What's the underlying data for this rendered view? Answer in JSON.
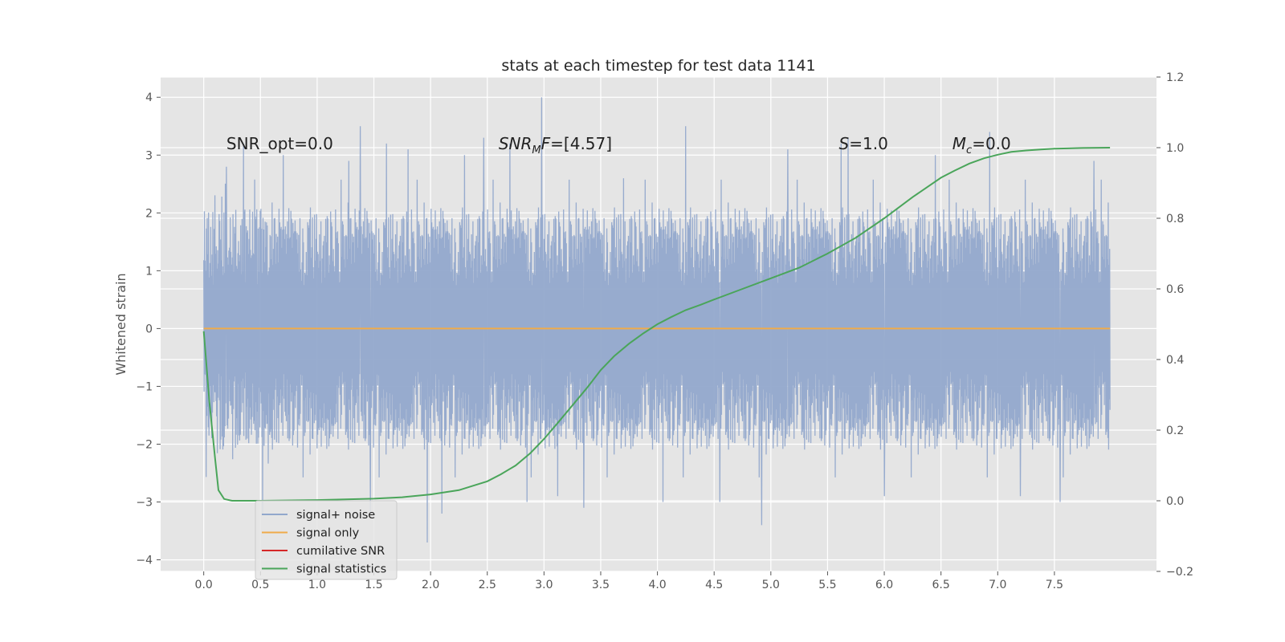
{
  "chart_data": {
    "type": "line",
    "title": "stats at each timestep for test data 1141",
    "ylabel": "Whitened strain",
    "xlabel": "",
    "xlim": [
      -0.38,
      8.4
    ],
    "ylim": [
      -4.2,
      4.35
    ],
    "y2lim": [
      -0.2,
      1.2
    ],
    "xticks": [
      "0.0",
      "0.5",
      "1.0",
      "1.5",
      "2.0",
      "2.5",
      "3.0",
      "3.5",
      "4.0",
      "4.5",
      "5.0",
      "5.5",
      "6.0",
      "6.5",
      "7.0",
      "7.5"
    ],
    "yticks": [
      "4",
      "3",
      "2",
      "1",
      "0",
      "−1",
      "−2",
      "−3",
      "−4"
    ],
    "y2ticks": [
      "1.2",
      "1.0",
      "0.8",
      "0.6",
      "0.4",
      "0.2",
      "0.0",
      "−0.2"
    ],
    "grid": true,
    "legend_position": "lower-left",
    "background": "#e5e5e5",
    "annotations": [
      {
        "id": "snr-opt",
        "text": "SNR_opt=0.0",
        "x": 0.2,
        "y": 3.2
      },
      {
        "id": "snr-mf",
        "text": "SNR_MF=[4.57]",
        "x": 2.6,
        "y": 3.2
      },
      {
        "id": "s-stat",
        "text": "S=1.0",
        "x": 5.6,
        "y": 3.2
      },
      {
        "id": "mc",
        "text": "M_c=0.0",
        "x": 6.6,
        "y": 3.2
      }
    ],
    "series": [
      {
        "name": "signal+ noise",
        "color": "#92a8cc",
        "axis": "left",
        "x_range": [
          0.0,
          7.99
        ],
        "envelope": {
          "typical_peak": 2.1,
          "max": 4.0,
          "min": -3.7,
          "core": 0.75
        },
        "spikes": [
          {
            "x": 0.2,
            "y": 2.8
          },
          {
            "x": 0.35,
            "y": 3.2
          },
          {
            "x": 0.52,
            "y": -3.2
          },
          {
            "x": 0.7,
            "y": 3.0
          },
          {
            "x": 1.28,
            "y": 2.9
          },
          {
            "x": 1.38,
            "y": 3.5
          },
          {
            "x": 1.47,
            "y": -3.2
          },
          {
            "x": 1.61,
            "y": 3.2
          },
          {
            "x": 1.8,
            "y": 3.1
          },
          {
            "x": 1.97,
            "y": -3.7
          },
          {
            "x": 2.1,
            "y": -3.2
          },
          {
            "x": 2.3,
            "y": 3.0
          },
          {
            "x": 2.47,
            "y": 3.3
          },
          {
            "x": 2.7,
            "y": 3.2
          },
          {
            "x": 2.85,
            "y": -3.0
          },
          {
            "x": 2.98,
            "y": 4.0
          },
          {
            "x": 3.12,
            "y": -2.9
          },
          {
            "x": 3.35,
            "y": -3.1
          },
          {
            "x": 3.7,
            "y": 2.6
          },
          {
            "x": 4.05,
            "y": -3.0
          },
          {
            "x": 4.25,
            "y": 3.5
          },
          {
            "x": 4.55,
            "y": -3.0
          },
          {
            "x": 4.92,
            "y": -3.4
          },
          {
            "x": 5.15,
            "y": 3.1
          },
          {
            "x": 5.62,
            "y": 3.2
          },
          {
            "x": 5.68,
            "y": 3.3
          },
          {
            "x": 6.0,
            "y": -2.9
          },
          {
            "x": 6.45,
            "y": 3.0
          },
          {
            "x": 6.93,
            "y": 3.4
          },
          {
            "x": 7.2,
            "y": -2.9
          },
          {
            "x": 7.55,
            "y": -3.0
          },
          {
            "x": 7.85,
            "y": 2.9
          }
        ]
      },
      {
        "name": "signal only",
        "color": "#f0ab4a",
        "axis": "left",
        "x": [
          0.0,
          7.99
        ],
        "y": [
          0.0,
          0.0
        ]
      },
      {
        "name": "cumilative SNR",
        "color": "#d62728",
        "axis": "right",
        "x": [],
        "y": []
      },
      {
        "name": "signal statistics",
        "color": "#4aa55a",
        "axis": "right",
        "x": [
          0.0,
          0.05,
          0.1,
          0.13,
          0.18,
          0.25,
          0.5,
          1.0,
          1.5,
          1.75,
          2.0,
          2.25,
          2.4,
          2.5,
          2.62,
          2.75,
          2.88,
          3.0,
          3.12,
          3.25,
          3.38,
          3.5,
          3.62,
          3.75,
          3.88,
          4.0,
          4.12,
          4.25,
          4.38,
          4.5,
          4.75,
          5.0,
          5.25,
          5.5,
          5.75,
          6.0,
          6.25,
          6.5,
          6.62,
          6.75,
          6.88,
          7.0,
          7.12,
          7.25,
          7.38,
          7.5,
          7.62,
          7.75,
          7.99
        ],
        "y": [
          0.48,
          0.28,
          0.12,
          0.03,
          0.005,
          0.0,
          0.0,
          0.002,
          0.006,
          0.01,
          0.018,
          0.03,
          0.045,
          0.055,
          0.075,
          0.1,
          0.135,
          0.175,
          0.22,
          0.27,
          0.32,
          0.37,
          0.41,
          0.445,
          0.475,
          0.5,
          0.52,
          0.54,
          0.555,
          0.57,
          0.6,
          0.63,
          0.66,
          0.7,
          0.745,
          0.8,
          0.86,
          0.915,
          0.935,
          0.955,
          0.97,
          0.98,
          0.988,
          0.992,
          0.995,
          0.997,
          0.998,
          0.999,
          1.0
        ]
      }
    ]
  }
}
